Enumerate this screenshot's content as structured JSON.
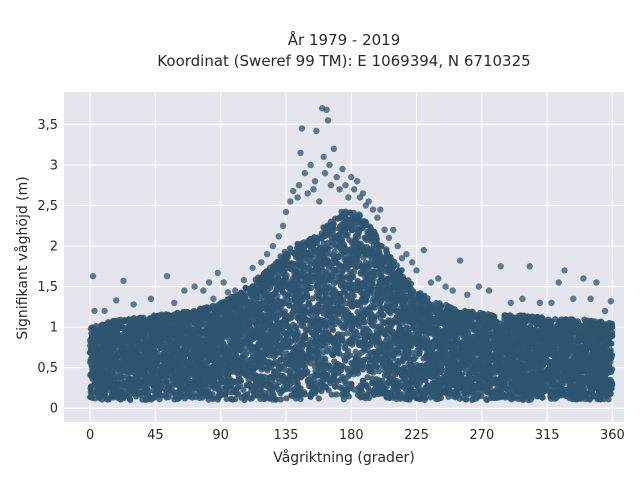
{
  "chart_data": {
    "type": "scatter",
    "title": "År 1979 - 2019",
    "subtitle": "Koordinat (Sweref 99 TM): E 1069394, N 6710325",
    "xlabel": "Vågriktning (grader)",
    "ylabel": "Signifikant våghöjd (m)",
    "xlim": [
      -18,
      368
    ],
    "ylim": [
      -0.17,
      3.9
    ],
    "x_ticks": [
      0,
      45,
      90,
      135,
      180,
      225,
      270,
      315,
      360
    ],
    "x_tick_labels": [
      "0",
      "45",
      "90",
      "135",
      "180",
      "225",
      "270",
      "315",
      "360"
    ],
    "y_ticks": [
      0,
      0.5,
      1,
      1.5,
      2,
      2.5,
      3,
      3.5
    ],
    "y_tick_labels": [
      "0",
      "0,5",
      "1",
      "1,5",
      "2",
      "2,5",
      "3",
      "3,5"
    ],
    "grid": true,
    "marker_color": "#2e5570",
    "background_color": "#e5e5ee",
    "envelope": {
      "x": [
        0,
        20,
        45,
        70,
        90,
        105,
        115,
        125,
        135,
        145,
        155,
        165,
        175,
        185,
        195,
        205,
        215,
        225,
        240,
        260,
        280,
        300,
        320,
        340,
        360
      ],
      "ymax": [
        1.0,
        1.1,
        1.15,
        1.2,
        1.3,
        1.45,
        1.6,
        1.75,
        1.95,
        2.05,
        2.15,
        2.3,
        2.45,
        2.4,
        2.2,
        1.95,
        1.7,
        1.45,
        1.3,
        1.2,
        1.15,
        1.15,
        1.1,
        1.1,
        1.05
      ]
    },
    "points": [
      {
        "x": 2,
        "y": 1.63
      },
      {
        "x": 3,
        "y": 1.2
      },
      {
        "x": 10,
        "y": 1.2
      },
      {
        "x": 18,
        "y": 1.33
      },
      {
        "x": 23,
        "y": 1.57
      },
      {
        "x": 30,
        "y": 1.28
      },
      {
        "x": 42,
        "y": 1.35
      },
      {
        "x": 53,
        "y": 1.63
      },
      {
        "x": 58,
        "y": 1.3
      },
      {
        "x": 65,
        "y": 1.45
      },
      {
        "x": 72,
        "y": 1.5
      },
      {
        "x": 78,
        "y": 1.45
      },
      {
        "x": 82,
        "y": 1.55
      },
      {
        "x": 85,
        "y": 1.35
      },
      {
        "x": 88,
        "y": 1.67
      },
      {
        "x": 92,
        "y": 1.55
      },
      {
        "x": 95,
        "y": 1.43
      },
      {
        "x": 100,
        "y": 1.45
      },
      {
        "x": 106,
        "y": 1.58
      },
      {
        "x": 112,
        "y": 1.73
      },
      {
        "x": 118,
        "y": 1.8
      },
      {
        "x": 122,
        "y": 1.9
      },
      {
        "x": 126,
        "y": 2.0
      },
      {
        "x": 130,
        "y": 2.12
      },
      {
        "x": 133,
        "y": 2.25
      },
      {
        "x": 135,
        "y": 2.42
      },
      {
        "x": 138,
        "y": 2.55
      },
      {
        "x": 140,
        "y": 2.68
      },
      {
        "x": 143,
        "y": 2.6
      },
      {
        "x": 144,
        "y": 2.75
      },
      {
        "x": 145,
        "y": 3.15
      },
      {
        "x": 146,
        "y": 3.45
      },
      {
        "x": 148,
        "y": 2.9
      },
      {
        "x": 150,
        "y": 2.65
      },
      {
        "x": 152,
        "y": 3.0
      },
      {
        "x": 154,
        "y": 2.7
      },
      {
        "x": 155,
        "y": 2.8
      },
      {
        "x": 156,
        "y": 3.42
      },
      {
        "x": 158,
        "y": 2.55
      },
      {
        "x": 160,
        "y": 3.7
      },
      {
        "x": 161,
        "y": 3.1
      },
      {
        "x": 162,
        "y": 2.9
      },
      {
        "x": 163,
        "y": 3.68
      },
      {
        "x": 164,
        "y": 3.55
      },
      {
        "x": 165,
        "y": 3.0
      },
      {
        "x": 166,
        "y": 2.75
      },
      {
        "x": 168,
        "y": 3.2
      },
      {
        "x": 170,
        "y": 2.85
      },
      {
        "x": 172,
        "y": 2.7
      },
      {
        "x": 174,
        "y": 2.95
      },
      {
        "x": 176,
        "y": 2.75
      },
      {
        "x": 178,
        "y": 2.6
      },
      {
        "x": 180,
        "y": 2.85
      },
      {
        "x": 182,
        "y": 2.7
      },
      {
        "x": 184,
        "y": 2.8
      },
      {
        "x": 186,
        "y": 2.6
      },
      {
        "x": 188,
        "y": 2.65
      },
      {
        "x": 190,
        "y": 2.5
      },
      {
        "x": 192,
        "y": 2.55
      },
      {
        "x": 195,
        "y": 2.45
      },
      {
        "x": 198,
        "y": 2.35
      },
      {
        "x": 200,
        "y": 2.45
      },
      {
        "x": 203,
        "y": 2.2
      },
      {
        "x": 206,
        "y": 2.1
      },
      {
        "x": 209,
        "y": 2.2
      },
      {
        "x": 212,
        "y": 2.0
      },
      {
        "x": 215,
        "y": 1.85
      },
      {
        "x": 218,
        "y": 1.9
      },
      {
        "x": 222,
        "y": 1.8
      },
      {
        "x": 225,
        "y": 1.7
      },
      {
        "x": 230,
        "y": 1.95
      },
      {
        "x": 235,
        "y": 1.55
      },
      {
        "x": 240,
        "y": 1.6
      },
      {
        "x": 245,
        "y": 1.5
      },
      {
        "x": 250,
        "y": 1.45
      },
      {
        "x": 255,
        "y": 1.82
      },
      {
        "x": 260,
        "y": 1.4
      },
      {
        "x": 268,
        "y": 1.5
      },
      {
        "x": 275,
        "y": 1.45
      },
      {
        "x": 283,
        "y": 1.75
      },
      {
        "x": 290,
        "y": 1.3
      },
      {
        "x": 298,
        "y": 1.35
      },
      {
        "x": 303,
        "y": 1.75
      },
      {
        "x": 310,
        "y": 1.3
      },
      {
        "x": 318,
        "y": 1.3
      },
      {
        "x": 323,
        "y": 1.55
      },
      {
        "x": 327,
        "y": 1.7
      },
      {
        "x": 333,
        "y": 1.35
      },
      {
        "x": 340,
        "y": 1.6
      },
      {
        "x": 345,
        "y": 1.35
      },
      {
        "x": 349,
        "y": 1.55
      },
      {
        "x": 355,
        "y": 1.2
      },
      {
        "x": 359,
        "y": 1.32
      }
    ]
  }
}
